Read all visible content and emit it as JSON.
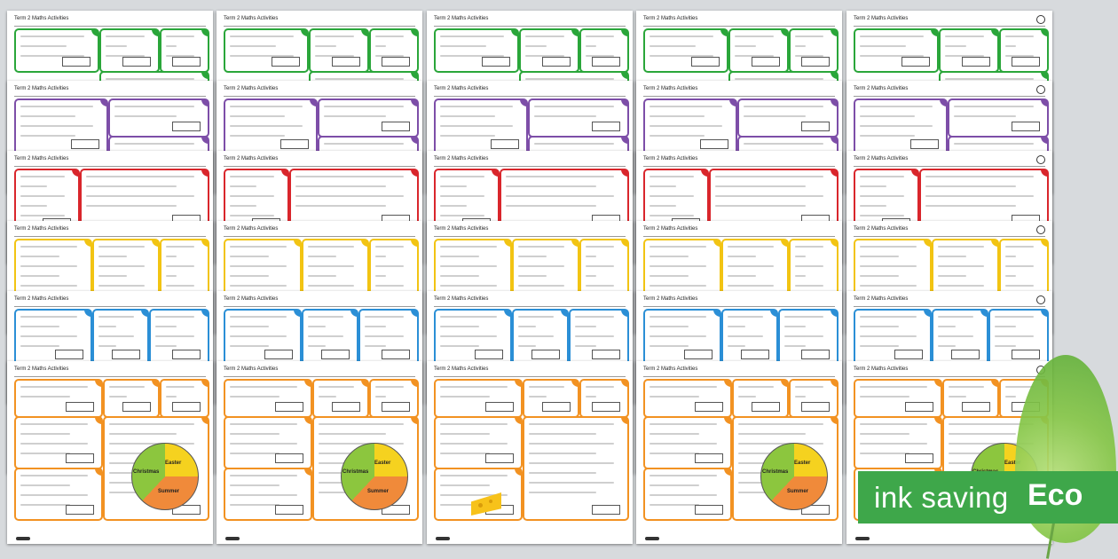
{
  "sheet_title": "Term 2 Maths Activities",
  "eco": {
    "text": "ink saving",
    "leaf_word": "Eco"
  },
  "pie_labels": {
    "easter": "Easter",
    "christmas": "Christmas",
    "summer": "Summer"
  },
  "colors": {
    "green": "#2aa63a",
    "purple": "#7d4ea8",
    "red": "#d9262c",
    "yellow": "#f2c413",
    "blue": "#2b8fd6",
    "orange": "#f29222",
    "eco_green": "#3ea74a"
  }
}
